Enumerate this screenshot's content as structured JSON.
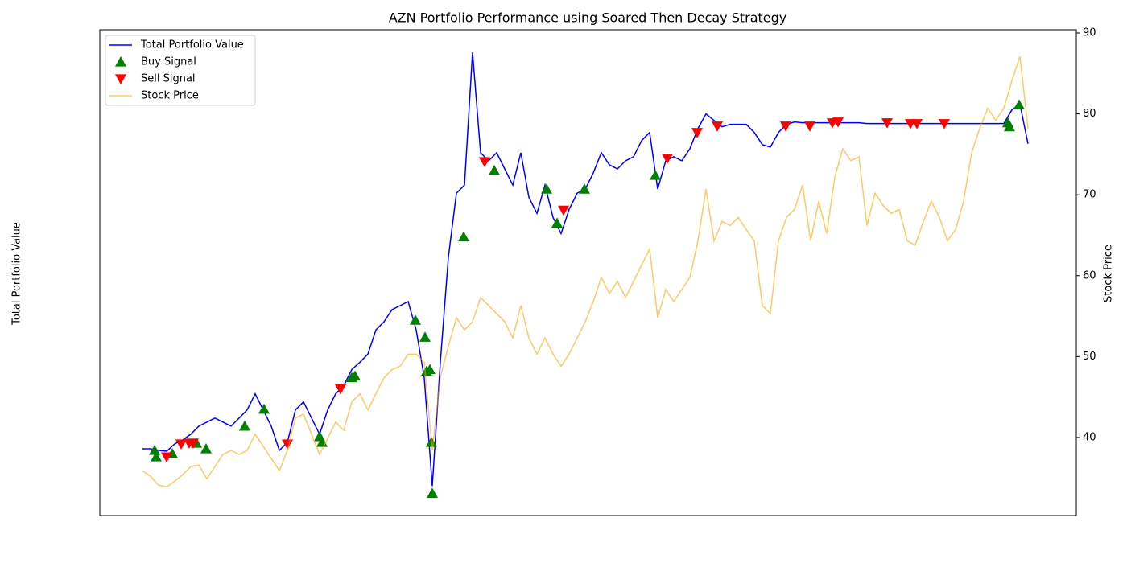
{
  "chart_data": {
    "type": "line",
    "title": "AZN Portfolio Performance using Soared Then Decay Strategy",
    "ylabel": "Total Portfolio Value",
    "y2label": "Stock Price",
    "xlim": [
      -5.3,
      116
    ],
    "ylim": [
      30.35,
      90.4
    ],
    "y2lim": [
      30.35,
      90.4
    ],
    "y2ticks": [
      40,
      50,
      60,
      70,
      80,
      90
    ],
    "legend": "upper left",
    "series": [
      {
        "name": "Total Portfolio Value",
        "type": "line",
        "color": "#0000ff",
        "axis": "y",
        "values": [
          38.6,
          38.6,
          38.4,
          38.3,
          39.2,
          39.7,
          40.4,
          41.4,
          41.9,
          42.4,
          41.9,
          41.4,
          42.4,
          43.4,
          45.4,
          43.4,
          41.4,
          38.4,
          39.4,
          43.4,
          44.4,
          42.4,
          40.4,
          43.4,
          45.4,
          46.4,
          48.4,
          49.3,
          50.3,
          53.3,
          54.3,
          55.8,
          56.3,
          56.8,
          53.3,
          47.4,
          34,
          49.3,
          62.3,
          70.2,
          71.2,
          87.6,
          75.2,
          74.2,
          75.2,
          73.2,
          71.2,
          75.2,
          69.7,
          67.7,
          71.2,
          67.2,
          65.2,
          68.2,
          70.2,
          70.7,
          72.7,
          75.2,
          73.7,
          73.2,
          74.2,
          74.7,
          76.7,
          77.7,
          70.7,
          74.2,
          74.7,
          74.2,
          75.7,
          78.2,
          80.0,
          79.2,
          78.4,
          78.7,
          78.7,
          78.7,
          77.7,
          76.2,
          75.9,
          77.7,
          78.7,
          79.0,
          78.9,
          78.9,
          78.9,
          78.9,
          78.9,
          78.9,
          78.9,
          78.9,
          78.8,
          78.8,
          78.8,
          78.8,
          78.8,
          78.8,
          78.8,
          78.8,
          78.8,
          78.8,
          78.8,
          78.8,
          78.8,
          78.8,
          78.8,
          78.8,
          78.8,
          78.8,
          80.5,
          81.2,
          76.3
        ]
      },
      {
        "name": "Buy Signal",
        "type": "scatter",
        "marker": "^",
        "color": "#008000",
        "axis": "y",
        "x": [
          1.5,
          1.7,
          3.7,
          6.7,
          7.9,
          12.7,
          15.1,
          22,
          22.3,
          26,
          26.4,
          33.9,
          35.1,
          35.3,
          35.7,
          35.9,
          36,
          39.9,
          43.7,
          50.2,
          51.5,
          54.9,
          63.7,
          107.5,
          107.7,
          108.9
        ],
        "values": [
          38.4,
          37.6,
          38.0,
          39.3,
          38.6,
          41.4,
          43.5,
          40.1,
          39.4,
          47.4,
          47.6,
          54.5,
          52.4,
          48.2,
          48.4,
          39.4,
          33.1,
          64.8,
          73.0,
          70.7,
          66.5,
          70.7,
          72.4,
          78.9,
          78.4,
          81.1
        ]
      },
      {
        "name": "Sell Signal",
        "type": "scatter",
        "marker": "v",
        "color": "#ff0000",
        "axis": "y",
        "x": [
          3,
          4.8,
          5.8,
          6.3,
          18,
          24.6,
          42.5,
          52.3,
          65.2,
          68.9,
          71.4,
          79.9,
          82.9,
          85.7,
          86.4,
          92.5,
          95.4,
          96.2,
          99.6
        ],
        "values": [
          37.6,
          39.2,
          39.3,
          39.3,
          39.2,
          46.0,
          74.1,
          68.1,
          74.5,
          77.7,
          78.5,
          78.5,
          78.5,
          78.9,
          79.0,
          78.9,
          78.8,
          78.8,
          78.8
        ]
      },
      {
        "name": "Stock Price",
        "type": "line",
        "color": "#ffa500",
        "alpha": 0.6,
        "axis": "y2",
        "values": [
          35.9,
          35.2,
          34.1,
          33.9,
          34.6,
          35.4,
          36.4,
          36.6,
          34.9,
          36.4,
          37.9,
          38.4,
          37.9,
          38.4,
          40.4,
          38.9,
          37.4,
          35.9,
          38.4,
          42.4,
          42.9,
          40.4,
          37.9,
          39.9,
          41.9,
          40.9,
          44.4,
          45.4,
          43.4,
          45.4,
          47.4,
          48.4,
          48.8,
          50.3,
          50.3,
          49.3,
          38.4,
          47.4,
          51.3,
          54.8,
          53.3,
          54.3,
          57.3,
          56.3,
          55.3,
          54.3,
          52.3,
          56.3,
          52.3,
          50.3,
          52.3,
          50.3,
          48.8,
          50.3,
          52.3,
          54.3,
          56.8,
          59.8,
          57.8,
          59.3,
          57.3,
          59.3,
          61.3,
          63.3,
          54.8,
          58.3,
          56.8,
          58.3,
          59.8,
          64.3,
          70.7,
          64.3,
          66.7,
          66.2,
          67.2,
          65.7,
          64.3,
          56.3,
          55.3,
          64.3,
          67.2,
          68.2,
          71.2,
          64.3,
          69.2,
          65.2,
          72.2,
          75.7,
          74.2,
          74.7,
          66.2,
          70.2,
          68.7,
          67.7,
          68.2,
          64.3,
          63.8,
          66.7,
          69.2,
          67.2,
          64.3,
          65.7,
          69.2,
          75.2,
          78.2,
          80.7,
          79.2,
          80.7,
          84.1,
          87.1,
          78.2
        ]
      }
    ]
  }
}
